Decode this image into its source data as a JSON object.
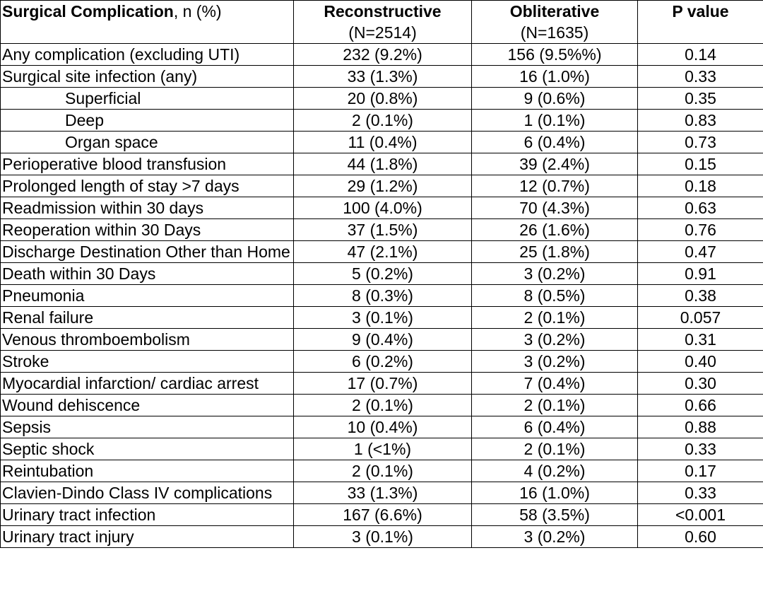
{
  "header": {
    "col1_bold": "Surgical Complication",
    "col1_rest": ", n (%)",
    "col2": "Reconstructive",
    "col2_n": "(N=2514)",
    "col3": "Obliterative",
    "col3_n": "(N=1635)",
    "col4": "P value"
  },
  "rows": [
    {
      "label": "Any complication (excluding UTI)",
      "indent": false,
      "recon": "232 (9.2%)",
      "oblit": "156 (9.5%%)",
      "p": "0.14"
    },
    {
      "label": "Surgical site infection (any)",
      "indent": false,
      "recon": "33 (1.3%)",
      "oblit": "16 (1.0%)",
      "p": "0.33"
    },
    {
      "label": "Superficial",
      "indent": true,
      "recon": "20 (0.8%)",
      "oblit": "9 (0.6%)",
      "p": "0.35"
    },
    {
      "label": "Deep",
      "indent": true,
      "recon": "2 (0.1%)",
      "oblit": "1 (0.1%)",
      "p": "0.83"
    },
    {
      "label": "Organ space",
      "indent": true,
      "recon": "11 (0.4%)",
      "oblit": "6 (0.4%)",
      "p": "0.73"
    },
    {
      "label": "Perioperative blood transfusion",
      "indent": false,
      "recon": "44 (1.8%)",
      "oblit": "39 (2.4%)",
      "p": "0.15"
    },
    {
      "label": "Prolonged length of stay >7 days",
      "indent": false,
      "recon": "29 (1.2%)",
      "oblit": "12 (0.7%)",
      "p": "0.18"
    },
    {
      "label": "Readmission within 30 days",
      "indent": false,
      "recon": "100 (4.0%)",
      "oblit": "70 (4.3%)",
      "p": "0.63"
    },
    {
      "label": "Reoperation within 30 Days",
      "indent": false,
      "recon": "37 (1.5%)",
      "oblit": "26 (1.6%)",
      "p": "0.76"
    },
    {
      "label": "Discharge Destination Other than Home",
      "indent": false,
      "recon": "47 (2.1%)",
      "oblit": "25 (1.8%)",
      "p": "0.47"
    },
    {
      "label": "Death within 30 Days",
      "indent": false,
      "recon": "5 (0.2%)",
      "oblit": "3 (0.2%)",
      "p": "0.91"
    },
    {
      "label": "Pneumonia",
      "indent": false,
      "recon": "8 (0.3%)",
      "oblit": "8 (0.5%)",
      "p": "0.38"
    },
    {
      "label": "Renal failure",
      "indent": false,
      "recon": "3 (0.1%)",
      "oblit": "2 (0.1%)",
      "p": "0.057"
    },
    {
      "label": "Venous thromboembolism",
      "indent": false,
      "recon": "9 (0.4%)",
      "oblit": "3 (0.2%)",
      "p": "0.31"
    },
    {
      "label": "Stroke",
      "indent": false,
      "recon": "6 (0.2%)",
      "oblit": "3 (0.2%)",
      "p": "0.40"
    },
    {
      "label": "Myocardial infarction/ cardiac arrest",
      "indent": false,
      "recon": "17 (0.7%)",
      "oblit": "7 (0.4%)",
      "p": "0.30"
    },
    {
      "label": "Wound dehiscence",
      "indent": false,
      "recon": "2 (0.1%)",
      "oblit": "2 (0.1%)",
      "p": "0.66"
    },
    {
      "label": "Sepsis",
      "indent": false,
      "recon": "10 (0.4%)",
      "oblit": "6 (0.4%)",
      "p": "0.88"
    },
    {
      "label": "Septic shock",
      "indent": false,
      "recon": "1 (<1%)",
      "oblit": "2 (0.1%)",
      "p": "0.33"
    },
    {
      "label": "Reintubation",
      "indent": false,
      "recon": "2 (0.1%)",
      "oblit": "4 (0.2%)",
      "p": "0.17"
    },
    {
      "label": "Clavien-Dindo Class IV complications",
      "indent": false,
      "recon": "33 (1.3%)",
      "oblit": "16 (1.0%)",
      "p": "0.33"
    },
    {
      "label": "Urinary tract infection",
      "indent": false,
      "recon": "167 (6.6%)",
      "oblit": "58 (3.5%)",
      "p": "<0.001"
    },
    {
      "label": "Urinary tract injury",
      "indent": false,
      "recon": "3 (0.1%)",
      "oblit": "3 (0.2%)",
      "p": "0.60"
    }
  ]
}
